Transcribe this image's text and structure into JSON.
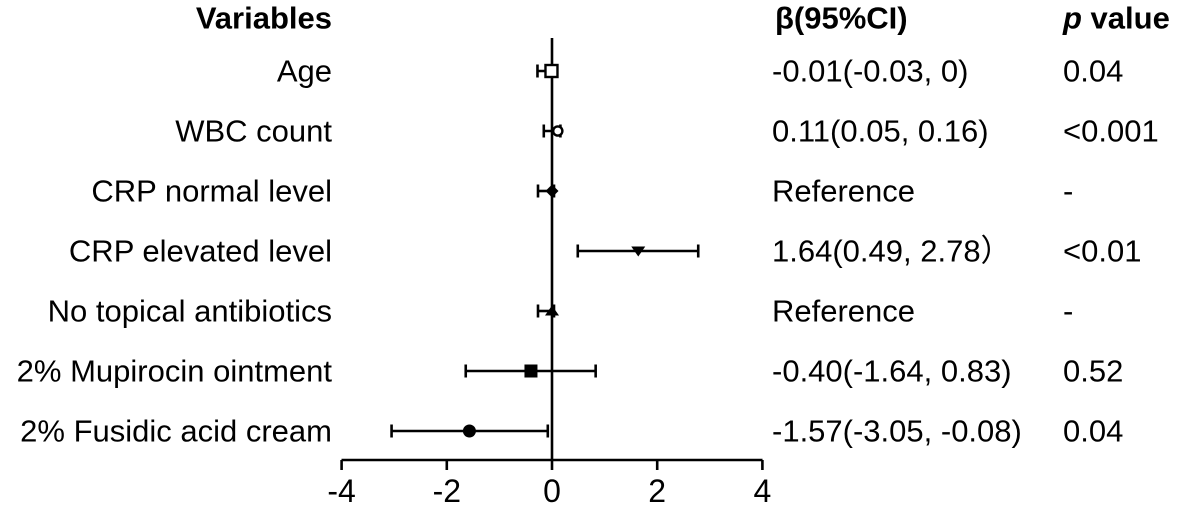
{
  "colors": {
    "ink": "#000000",
    "background": "#ffffff"
  },
  "table": {
    "variables_header": "Variables",
    "beta_header": "β(95%CI)",
    "p_header_italic": "p",
    "p_header_rest": " value"
  },
  "chart_data": {
    "type": "forest",
    "xlim": [
      -4,
      4
    ],
    "x_ticks": [
      "-4",
      "-2",
      "0",
      "2",
      "4"
    ],
    "x_tick_values": [
      -4,
      -2,
      0,
      2,
      4
    ],
    "zero_line": 0,
    "grid": false,
    "rows": [
      {
        "label": "Age",
        "beta": -0.01,
        "ci_low": -0.03,
        "ci_high": 0,
        "beta_text": "-0.01(-0.03, 0)",
        "p_text": "0.04",
        "marker": "square-open"
      },
      {
        "label": "WBC count",
        "beta": 0.11,
        "ci_low": 0.05,
        "ci_high": 0.16,
        "beta_text": "0.11(0.05, 0.16)",
        "p_text": "<0.001",
        "marker": "circle-open"
      },
      {
        "label": "CRP normal level",
        "beta": 0,
        "ci_low": 0,
        "ci_high": 0,
        "beta_text": "Reference",
        "p_text": "-",
        "marker": "diamond-filled"
      },
      {
        "label": "CRP elevated level",
        "beta": 1.64,
        "ci_low": 0.49,
        "ci_high": 2.78,
        "beta_text": "1.64(0.49, 2.78）",
        "p_text": "<0.01",
        "marker": "triangle-down-filled"
      },
      {
        "label": "No topical antibiotics",
        "beta": 0,
        "ci_low": 0,
        "ci_high": 0,
        "beta_text": "Reference",
        "p_text": "-",
        "marker": "triangle-up-filled"
      },
      {
        "label": "2% Mupirocin ointment",
        "beta": -0.4,
        "ci_low": -1.64,
        "ci_high": 0.83,
        "beta_text": "-0.40(-1.64, 0.83)",
        "p_text": "0.52",
        "marker": "square-filled"
      },
      {
        "label": "2% Fusidic acid cream",
        "beta": -1.57,
        "ci_low": -3.05,
        "ci_high": -0.08,
        "beta_text": "-1.57(-3.05, -0.08)",
        "p_text": "0.04",
        "marker": "circle-filled"
      }
    ]
  }
}
